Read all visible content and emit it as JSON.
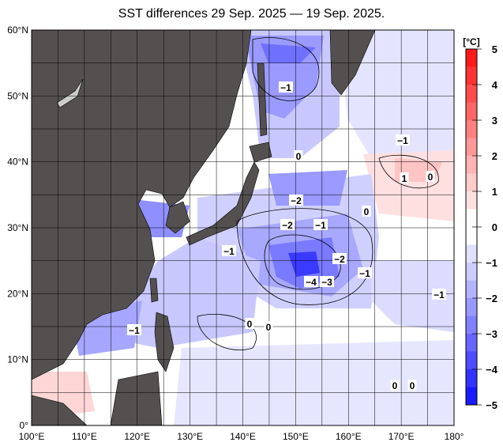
{
  "title": "SST differences 29 Sep. 2025 — 19 Sep. 2025.",
  "map": {
    "lon_range": [
      100,
      180
    ],
    "lat_range": [
      0,
      60
    ],
    "lon_ticks": [
      "100°E",
      "110°E",
      "120°E",
      "130°E",
      "140°E",
      "150°E",
      "160°E",
      "170°E",
      "180°"
    ],
    "lat_ticks": [
      "0°",
      "10°N",
      "20°N",
      "30°N",
      "40°N",
      "50°N",
      "60°N"
    ],
    "land_color": "#545050",
    "contour_labels": [
      "-1",
      "0",
      "-2",
      "-2",
      "-1",
      "0",
      "1",
      "0",
      "-1",
      "-2",
      "-1",
      "-4",
      "-3",
      "-1",
      "-1",
      "0",
      "0",
      "0",
      "0",
      "-1"
    ]
  },
  "colorbar": {
    "unit": "[°C]",
    "ticks": [
      "5",
      "4",
      "3",
      "2",
      "1",
      "0",
      "−1",
      "−2",
      "−3",
      "−4",
      "−5"
    ],
    "range": [
      -5,
      5
    ],
    "colors": [
      "#ff1a1a",
      "#ff3333",
      "#ff4d4d",
      "#ff6666",
      "#ff8080",
      "#ff9999",
      "#ffb3b3",
      "#ffcccc",
      "#ffe0e0",
      "#ffffff",
      "#ffffff",
      "#e0e0ff",
      "#ccccff",
      "#b3b3ff",
      "#9999ff",
      "#8080ff",
      "#6666ff",
      "#4d4dff",
      "#3333ff",
      "#1a1aff"
    ]
  }
}
